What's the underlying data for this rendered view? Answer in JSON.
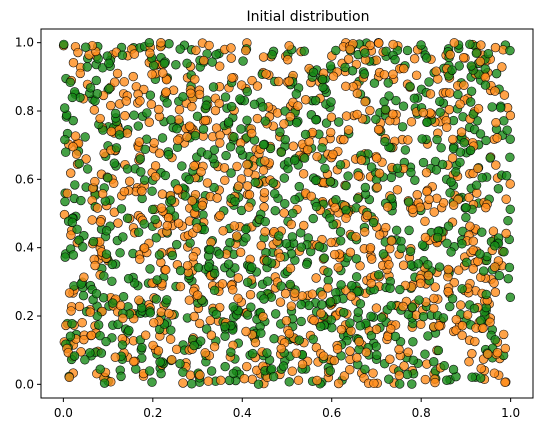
{
  "chart_data": {
    "type": "scatter",
    "title": "Initial distribution",
    "xlabel": "",
    "ylabel": "",
    "xlim": [
      -0.05,
      1.05
    ],
    "ylim": [
      -0.04,
      1.04
    ],
    "x_ticks": [
      "0.0",
      "0.2",
      "0.4",
      "0.6",
      "0.8",
      "1.0"
    ],
    "y_ticks": [
      "0.0",
      "0.2",
      "0.4",
      "0.6",
      "0.8",
      "1.0"
    ],
    "grid": false,
    "legend": "none",
    "series": [
      {
        "color": "#ff8c1a",
        "edge_color": "#000000",
        "alpha": 0.8,
        "approx_count": 1000,
        "distribution": "uniform",
        "x_range": [
          0.0,
          1.0
        ],
        "y_range": [
          0.0,
          1.0
        ]
      },
      {
        "color": "#168a16",
        "edge_color": "#000000",
        "alpha": 0.8,
        "approx_count": 1000,
        "distribution": "uniform",
        "x_range": [
          0.0,
          1.0
        ],
        "y_range": [
          0.0,
          1.0
        ]
      }
    ]
  }
}
